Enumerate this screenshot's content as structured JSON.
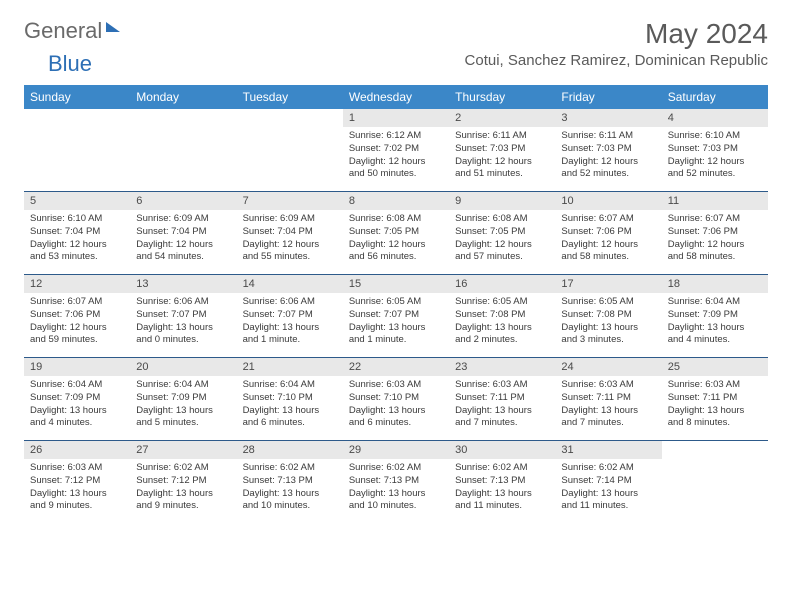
{
  "logo": {
    "part1": "General",
    "part2": "Blue"
  },
  "title": "May 2024",
  "location": "Cotui, Sanchez Ramirez, Dominican Republic",
  "colors": {
    "header_bg": "#3b87c8",
    "header_text": "#ffffff",
    "daynum_bg": "#e8e8e8",
    "week_border": "#2d5a8a",
    "text": "#3a3a3a",
    "title_text": "#5a5a5a",
    "logo_gray": "#6a6a6a",
    "logo_blue": "#2d6fb5"
  },
  "day_names": [
    "Sunday",
    "Monday",
    "Tuesday",
    "Wednesday",
    "Thursday",
    "Friday",
    "Saturday"
  ],
  "weeks": [
    [
      {
        "num": "",
        "sunrise": "",
        "sunset": "",
        "daylight": ""
      },
      {
        "num": "",
        "sunrise": "",
        "sunset": "",
        "daylight": ""
      },
      {
        "num": "",
        "sunrise": "",
        "sunset": "",
        "daylight": ""
      },
      {
        "num": "1",
        "sunrise": "Sunrise: 6:12 AM",
        "sunset": "Sunset: 7:02 PM",
        "daylight": "Daylight: 12 hours and 50 minutes."
      },
      {
        "num": "2",
        "sunrise": "Sunrise: 6:11 AM",
        "sunset": "Sunset: 7:03 PM",
        "daylight": "Daylight: 12 hours and 51 minutes."
      },
      {
        "num": "3",
        "sunrise": "Sunrise: 6:11 AM",
        "sunset": "Sunset: 7:03 PM",
        "daylight": "Daylight: 12 hours and 52 minutes."
      },
      {
        "num": "4",
        "sunrise": "Sunrise: 6:10 AM",
        "sunset": "Sunset: 7:03 PM",
        "daylight": "Daylight: 12 hours and 52 minutes."
      }
    ],
    [
      {
        "num": "5",
        "sunrise": "Sunrise: 6:10 AM",
        "sunset": "Sunset: 7:04 PM",
        "daylight": "Daylight: 12 hours and 53 minutes."
      },
      {
        "num": "6",
        "sunrise": "Sunrise: 6:09 AM",
        "sunset": "Sunset: 7:04 PM",
        "daylight": "Daylight: 12 hours and 54 minutes."
      },
      {
        "num": "7",
        "sunrise": "Sunrise: 6:09 AM",
        "sunset": "Sunset: 7:04 PM",
        "daylight": "Daylight: 12 hours and 55 minutes."
      },
      {
        "num": "8",
        "sunrise": "Sunrise: 6:08 AM",
        "sunset": "Sunset: 7:05 PM",
        "daylight": "Daylight: 12 hours and 56 minutes."
      },
      {
        "num": "9",
        "sunrise": "Sunrise: 6:08 AM",
        "sunset": "Sunset: 7:05 PM",
        "daylight": "Daylight: 12 hours and 57 minutes."
      },
      {
        "num": "10",
        "sunrise": "Sunrise: 6:07 AM",
        "sunset": "Sunset: 7:06 PM",
        "daylight": "Daylight: 12 hours and 58 minutes."
      },
      {
        "num": "11",
        "sunrise": "Sunrise: 6:07 AM",
        "sunset": "Sunset: 7:06 PM",
        "daylight": "Daylight: 12 hours and 58 minutes."
      }
    ],
    [
      {
        "num": "12",
        "sunrise": "Sunrise: 6:07 AM",
        "sunset": "Sunset: 7:06 PM",
        "daylight": "Daylight: 12 hours and 59 minutes."
      },
      {
        "num": "13",
        "sunrise": "Sunrise: 6:06 AM",
        "sunset": "Sunset: 7:07 PM",
        "daylight": "Daylight: 13 hours and 0 minutes."
      },
      {
        "num": "14",
        "sunrise": "Sunrise: 6:06 AM",
        "sunset": "Sunset: 7:07 PM",
        "daylight": "Daylight: 13 hours and 1 minute."
      },
      {
        "num": "15",
        "sunrise": "Sunrise: 6:05 AM",
        "sunset": "Sunset: 7:07 PM",
        "daylight": "Daylight: 13 hours and 1 minute."
      },
      {
        "num": "16",
        "sunrise": "Sunrise: 6:05 AM",
        "sunset": "Sunset: 7:08 PM",
        "daylight": "Daylight: 13 hours and 2 minutes."
      },
      {
        "num": "17",
        "sunrise": "Sunrise: 6:05 AM",
        "sunset": "Sunset: 7:08 PM",
        "daylight": "Daylight: 13 hours and 3 minutes."
      },
      {
        "num": "18",
        "sunrise": "Sunrise: 6:04 AM",
        "sunset": "Sunset: 7:09 PM",
        "daylight": "Daylight: 13 hours and 4 minutes."
      }
    ],
    [
      {
        "num": "19",
        "sunrise": "Sunrise: 6:04 AM",
        "sunset": "Sunset: 7:09 PM",
        "daylight": "Daylight: 13 hours and 4 minutes."
      },
      {
        "num": "20",
        "sunrise": "Sunrise: 6:04 AM",
        "sunset": "Sunset: 7:09 PM",
        "daylight": "Daylight: 13 hours and 5 minutes."
      },
      {
        "num": "21",
        "sunrise": "Sunrise: 6:04 AM",
        "sunset": "Sunset: 7:10 PM",
        "daylight": "Daylight: 13 hours and 6 minutes."
      },
      {
        "num": "22",
        "sunrise": "Sunrise: 6:03 AM",
        "sunset": "Sunset: 7:10 PM",
        "daylight": "Daylight: 13 hours and 6 minutes."
      },
      {
        "num": "23",
        "sunrise": "Sunrise: 6:03 AM",
        "sunset": "Sunset: 7:11 PM",
        "daylight": "Daylight: 13 hours and 7 minutes."
      },
      {
        "num": "24",
        "sunrise": "Sunrise: 6:03 AM",
        "sunset": "Sunset: 7:11 PM",
        "daylight": "Daylight: 13 hours and 7 minutes."
      },
      {
        "num": "25",
        "sunrise": "Sunrise: 6:03 AM",
        "sunset": "Sunset: 7:11 PM",
        "daylight": "Daylight: 13 hours and 8 minutes."
      }
    ],
    [
      {
        "num": "26",
        "sunrise": "Sunrise: 6:03 AM",
        "sunset": "Sunset: 7:12 PM",
        "daylight": "Daylight: 13 hours and 9 minutes."
      },
      {
        "num": "27",
        "sunrise": "Sunrise: 6:02 AM",
        "sunset": "Sunset: 7:12 PM",
        "daylight": "Daylight: 13 hours and 9 minutes."
      },
      {
        "num": "28",
        "sunrise": "Sunrise: 6:02 AM",
        "sunset": "Sunset: 7:13 PM",
        "daylight": "Daylight: 13 hours and 10 minutes."
      },
      {
        "num": "29",
        "sunrise": "Sunrise: 6:02 AM",
        "sunset": "Sunset: 7:13 PM",
        "daylight": "Daylight: 13 hours and 10 minutes."
      },
      {
        "num": "30",
        "sunrise": "Sunrise: 6:02 AM",
        "sunset": "Sunset: 7:13 PM",
        "daylight": "Daylight: 13 hours and 11 minutes."
      },
      {
        "num": "31",
        "sunrise": "Sunrise: 6:02 AM",
        "sunset": "Sunset: 7:14 PM",
        "daylight": "Daylight: 13 hours and 11 minutes."
      },
      {
        "num": "",
        "sunrise": "",
        "sunset": "",
        "daylight": ""
      }
    ]
  ]
}
